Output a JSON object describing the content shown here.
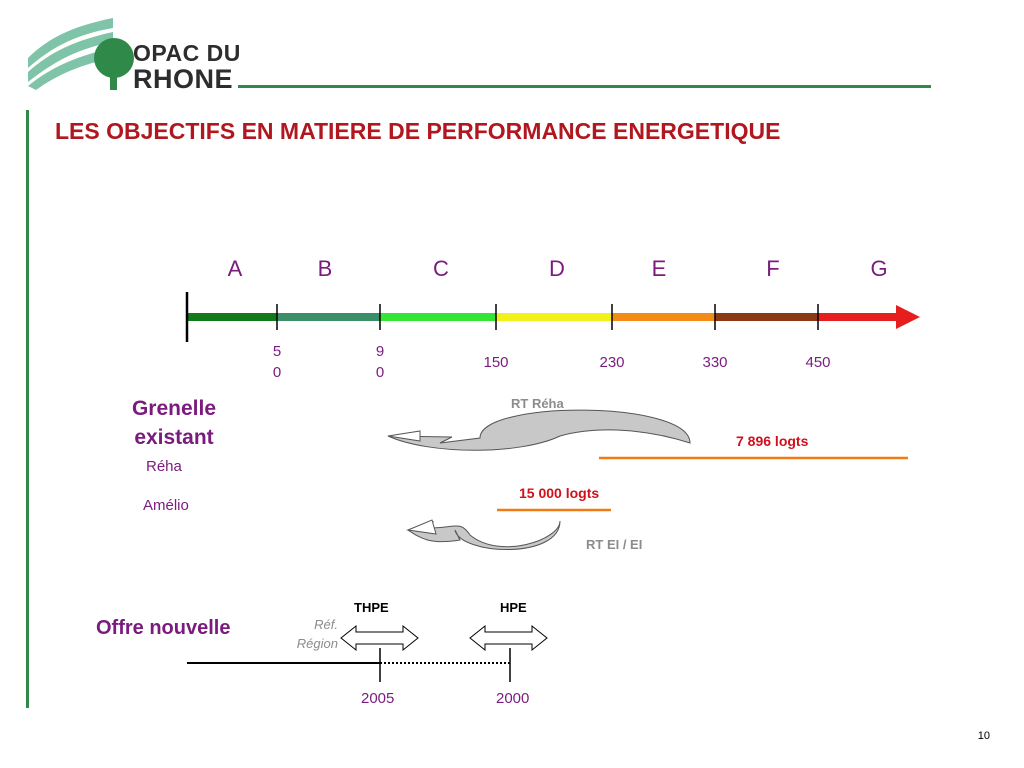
{
  "logo": {
    "line1": "OPAC DU",
    "line2": "RHONE"
  },
  "title": "LES OBJECTIFS EN MATIERE DE PERFORMANCE ENERGETIQUE",
  "scale": {
    "letters": [
      "A",
      "B",
      "C",
      "D",
      "E",
      "F",
      "G"
    ],
    "ticks": [
      {
        "line1": "5",
        "line2": "0"
      },
      {
        "line1": "9",
        "line2": "0"
      },
      {
        "line1": "150",
        "line2": ""
      },
      {
        "line1": "230",
        "line2": ""
      },
      {
        "line1": "330",
        "line2": ""
      },
      {
        "line1": "450",
        "line2": ""
      }
    ],
    "colors": [
      "#127a1a",
      "#3a8f6a",
      "#33e633",
      "#f2f21a",
      "#f28c14",
      "#8b3a14",
      "#e61e1e"
    ]
  },
  "grenelle": {
    "title": "Grenelle existant",
    "reha": "Réha",
    "amelio": "Amélio"
  },
  "rt_reha": "RT Réha",
  "logts_7896": "7 896 logts",
  "logts_15000": "15 000 logts",
  "rt_ei": "RT  EI / EI",
  "offre": {
    "title": "Offre nouvelle",
    "thpe": "THPE",
    "hpe": "HPE",
    "ref_region": "Réf. Région",
    "year_2005": "2005",
    "year_2000": "2000"
  },
  "page_number": "10"
}
